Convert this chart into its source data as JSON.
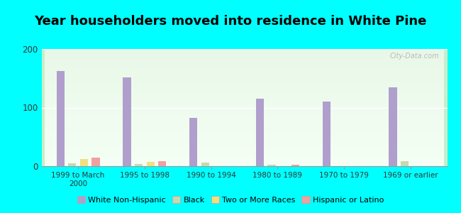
{
  "title": "Year householders moved into residence in White Pine",
  "categories": [
    "1999 to March\n2000",
    "1995 to 1998",
    "1990 to 1994",
    "1980 to 1989",
    "1970 to 1979",
    "1969 or earlier"
  ],
  "series": {
    "White Non-Hispanic": [
      163,
      152,
      82,
      115,
      110,
      135
    ],
    "Black": [
      5,
      4,
      6,
      3,
      0,
      8
    ],
    "Two or More Races": [
      12,
      7,
      0,
      0,
      0,
      0
    ],
    "Hispanic or Latino": [
      14,
      9,
      0,
      3,
      0,
      0
    ]
  },
  "colors": {
    "White Non-Hispanic": "#b09fcc",
    "Black": "#c8d9b0",
    "Two or More Races": "#f0e080",
    "Hispanic or Latino": "#f0a0a0"
  },
  "ylim": [
    0,
    200
  ],
  "yticks": [
    0,
    100,
    200
  ],
  "background_color": "#00ffff",
  "title_fontsize": 13,
  "watermark": "City-Data.com"
}
